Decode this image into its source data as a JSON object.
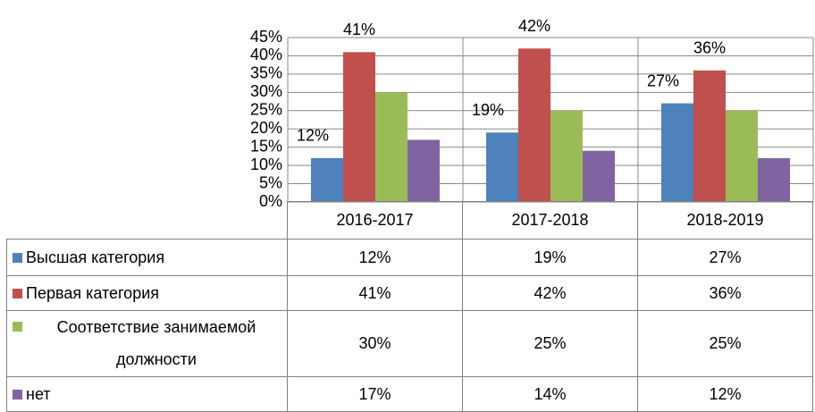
{
  "chart_data": {
    "type": "bar",
    "categories": [
      "2016-2017",
      "2017-2018",
      "2018-2019"
    ],
    "series": [
      {
        "name": "Высшая категория",
        "color": "#4f81bd",
        "values": [
          12,
          19,
          27
        ],
        "value_labels": [
          "12%",
          "19%",
          "27%"
        ],
        "data_labels": true
      },
      {
        "name": "Первая категория",
        "color": "#c0504d",
        "values": [
          41,
          42,
          36
        ],
        "value_labels": [
          "41%",
          "42%",
          "36%"
        ],
        "data_labels": true
      },
      {
        "name": "Соответствие занимаемой должности",
        "color": "#9bbb59",
        "values": [
          30,
          25,
          25
        ],
        "value_labels": [
          "30%",
          "25%",
          "25%"
        ],
        "data_labels": false
      },
      {
        "name": "нет",
        "color": "#8064a2",
        "values": [
          17,
          14,
          12
        ],
        "value_labels": [
          "17%",
          "14%",
          "12%"
        ],
        "data_labels": false
      }
    ],
    "ylim": [
      0,
      45
    ],
    "yticks": [
      {
        "value": 0,
        "label": "0%"
      },
      {
        "value": 5,
        "label": "5%"
      },
      {
        "value": 10,
        "label": "10%"
      },
      {
        "value": 15,
        "label": "15%"
      },
      {
        "value": 20,
        "label": "20%"
      },
      {
        "value": 25,
        "label": "25%"
      },
      {
        "value": 30,
        "label": "30%"
      },
      {
        "value": 35,
        "label": "35%"
      },
      {
        "value": 40,
        "label": "40%"
      },
      {
        "value": 45,
        "label": "45%"
      }
    ],
    "grid": true,
    "data_table": true
  }
}
